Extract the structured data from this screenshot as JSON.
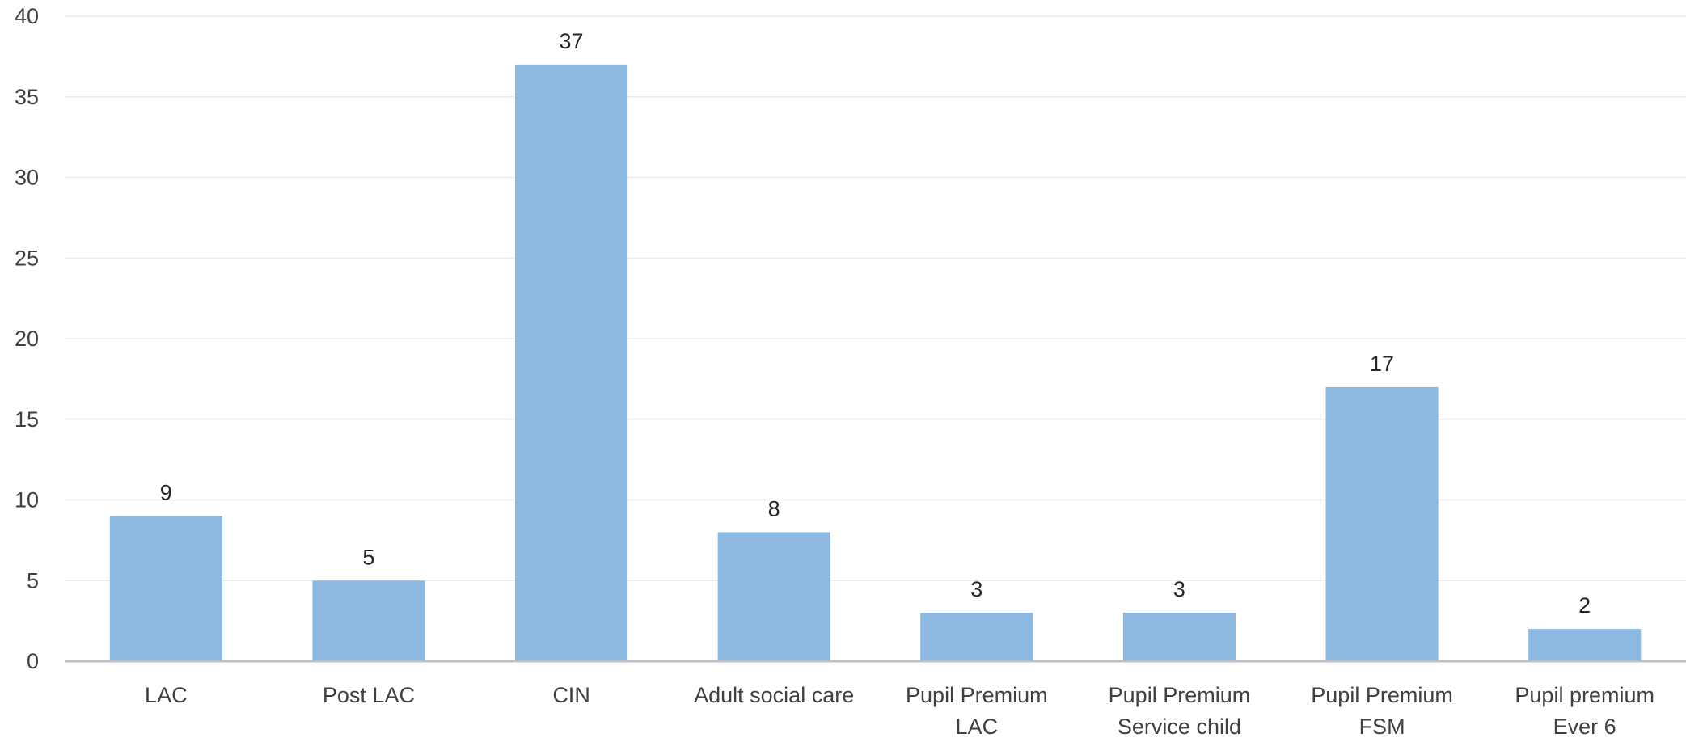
{
  "chart_data": {
    "type": "bar",
    "title": "",
    "xlabel": "",
    "ylabel": "",
    "ylim": [
      0,
      40
    ],
    "yticks": [
      0,
      5,
      10,
      15,
      20,
      25,
      30,
      35,
      40
    ],
    "grid": true,
    "legend": "none",
    "bar_color": "#8db8e2",
    "categories": [
      [
        "LAC"
      ],
      [
        "Post LAC"
      ],
      [
        "CIN"
      ],
      [
        "Adult social care"
      ],
      [
        "Pupil Premium",
        "LAC"
      ],
      [
        "Pupil Premium",
        "Service child"
      ],
      [
        "Pupil Premium",
        "FSM"
      ],
      [
        "Pupil premium",
        "Ever 6"
      ]
    ],
    "values": [
      9,
      5,
      37,
      8,
      3,
      3,
      17,
      2
    ],
    "data_labels": [
      "9",
      "5",
      "37",
      "8",
      "3",
      "3",
      "17",
      "2"
    ]
  }
}
